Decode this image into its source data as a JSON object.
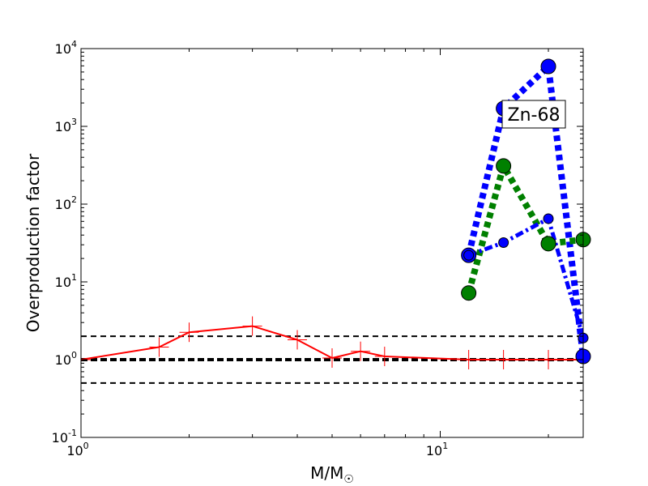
{
  "chart_data": {
    "type": "line",
    "title": "",
    "xlabel": "M/M",
    "xlabel_symbol": "☉",
    "ylabel": "Overproduction factor",
    "xscale": "log",
    "yscale": "log",
    "xlim": [
      1,
      25
    ],
    "ylim": [
      0.1,
      10000
    ],
    "x_ticks": [
      {
        "value": 1,
        "base": "10",
        "exp": "0"
      },
      {
        "value": 10,
        "base": "10",
        "exp": "1"
      }
    ],
    "y_ticks": [
      {
        "value": 0.1,
        "base": "10",
        "exp": "-1"
      },
      {
        "value": 1,
        "base": "10",
        "exp": "0"
      },
      {
        "value": 10,
        "base": "10",
        "exp": "1"
      },
      {
        "value": 100,
        "base": "10",
        "exp": "2"
      },
      {
        "value": 1000,
        "base": "10",
        "exp": "3"
      },
      {
        "value": 10000,
        "base": "10",
        "exp": "4"
      }
    ],
    "annotation": "Zn-68",
    "reference_lines": [
      {
        "y": 2,
        "style": "dashed",
        "color": "#000000"
      },
      {
        "y": 1,
        "style": "dashed-thick",
        "color": "#000000"
      },
      {
        "y": 0.5,
        "style": "dashed",
        "color": "#000000"
      }
    ],
    "series": [
      {
        "style": "solid-plus",
        "color": "#ff0000",
        "x": [
          1,
          1.65,
          2,
          3,
          4,
          5,
          6,
          7,
          12,
          15,
          20,
          25
        ],
        "y": [
          1.0,
          1.45,
          2.25,
          2.7,
          1.8,
          1.05,
          1.28,
          1.1,
          1.0,
          1.0,
          1.0,
          1.0
        ]
      },
      {
        "style": "dotted-thick",
        "color": "#0000ff",
        "marker_size": "large",
        "x": [
          12,
          15,
          20,
          25
        ],
        "y": [
          22,
          1700,
          5900,
          1.1
        ]
      },
      {
        "style": "dotted-thick",
        "color": "#008000",
        "marker_size": "large",
        "x": [
          12,
          15,
          20,
          25
        ],
        "y": [
          7.2,
          310,
          31,
          35
        ]
      },
      {
        "style": "dashdot-thick",
        "color": "#0000ff",
        "marker_size": "small",
        "x": [
          12,
          15,
          20,
          25
        ],
        "y": [
          22,
          32,
          65,
          1.9
        ]
      }
    ]
  }
}
